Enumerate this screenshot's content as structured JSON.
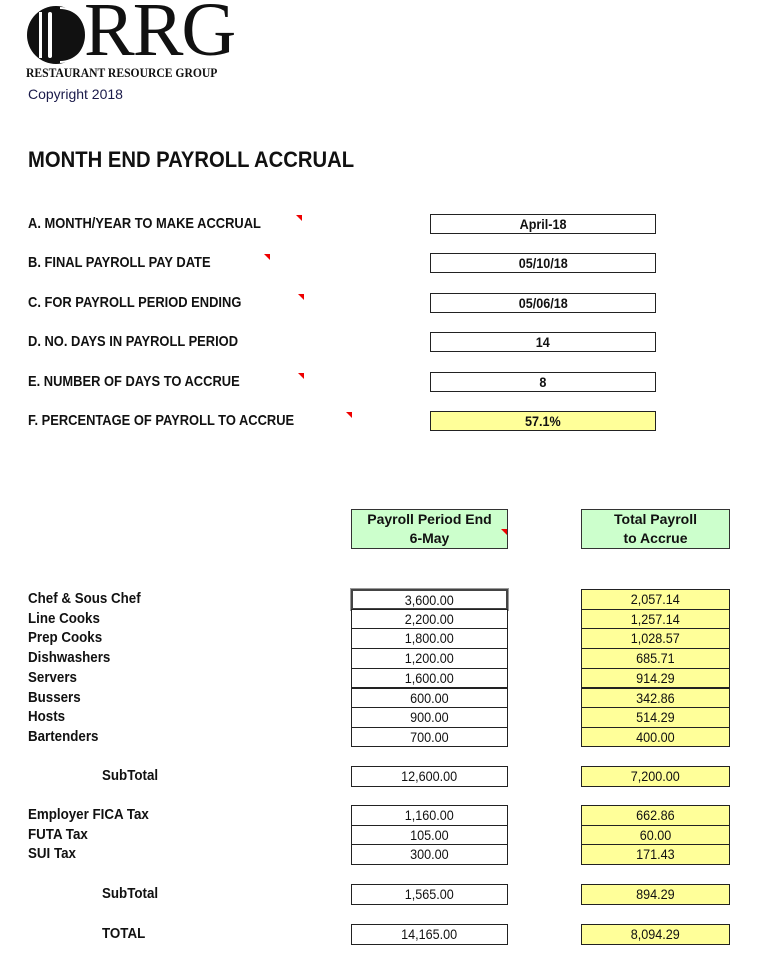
{
  "logo": {
    "letters": "RRG",
    "tagline": "RESTAURANT RESOURCE GROUP"
  },
  "copyright": "Copyright 2018",
  "title": "MONTH END PAYROLL ACCRUAL",
  "fields": [
    {
      "label": "A. MONTH/YEAR TO MAKE ACCRUAL",
      "value": "April-18",
      "comment": true
    },
    {
      "label": "B. FINAL PAYROLL PAY DATE",
      "value": "05/10/18",
      "comment": true
    },
    {
      "label": "C. FOR PAYROLL PERIOD ENDING",
      "value": "05/06/18",
      "comment": true
    },
    {
      "label": "D. NO. DAYS IN PAYROLL PERIOD",
      "value": "14",
      "comment": false
    },
    {
      "label": "E. NUMBER OF DAYS TO ACCRUE",
      "value": "8",
      "comment": true
    },
    {
      "label": "F. PERCENTAGE OF PAYROLL TO ACCRUE",
      "value": "57.1%",
      "comment": true
    }
  ],
  "columns": {
    "col1_line1": "Payroll Period End",
    "col1_line2": "6-May",
    "col2_line1": "Total Payroll",
    "col2_line2": "to Accrue"
  },
  "staff": [
    {
      "label": "Chef & Sous Chef",
      "period": "3,600.00",
      "accrue": "2,057.14"
    },
    {
      "label": "Line Cooks",
      "period": "2,200.00",
      "accrue": "1,257.14"
    },
    {
      "label": "Prep Cooks",
      "period": "1,800.00",
      "accrue": "1,028.57"
    },
    {
      "label": "Dishwashers",
      "period": "1,200.00",
      "accrue": "685.71"
    },
    {
      "label": "Servers",
      "period": "1,600.00",
      "accrue": "914.29"
    },
    {
      "label": "Bussers",
      "period": "600.00",
      "accrue": "342.86"
    },
    {
      "label": "Hosts",
      "period": "900.00",
      "accrue": "514.29"
    },
    {
      "label": "Bartenders",
      "period": "700.00",
      "accrue": "400.00"
    }
  ],
  "subtotal1": {
    "label": "SubTotal",
    "period": "12,600.00",
    "accrue": "7,200.00"
  },
  "taxes": [
    {
      "label": "Employer FICA Tax",
      "period": "1,160.00",
      "accrue": "662.86"
    },
    {
      "label": "FUTA Tax",
      "period": "105.00",
      "accrue": "60.00"
    },
    {
      "label": "SUI Tax",
      "period": "300.00",
      "accrue": "171.43"
    }
  ],
  "subtotal2": {
    "label": "SubTotal",
    "period": "1,565.00",
    "accrue": "894.29"
  },
  "total": {
    "label": "TOTAL",
    "period": "14,165.00",
    "accrue": "8,094.29"
  },
  "colors": {
    "header_green": "#ccffcc",
    "accrue_yellow": "#ffff99",
    "comment_red": "#e00000"
  }
}
